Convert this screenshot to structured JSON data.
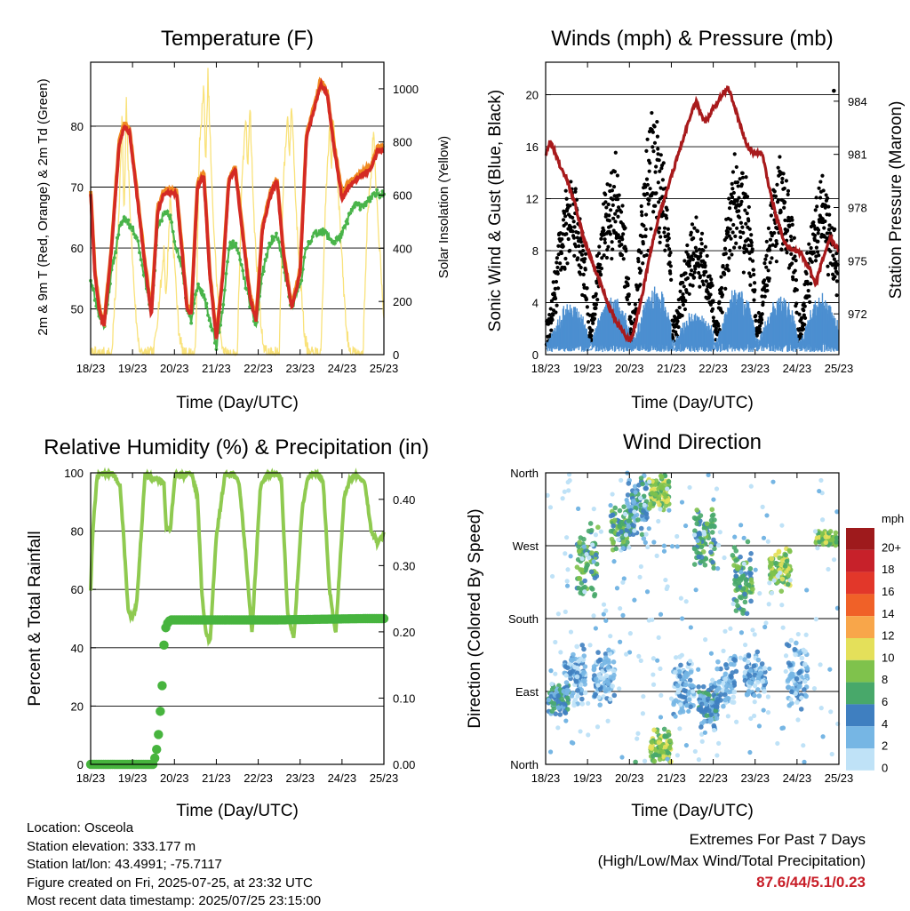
{
  "colors": {
    "temp_2m": "#d42a24",
    "temp_9m": "#f08a22",
    "dewpoint": "#49b44a",
    "solar": "#f9e27a",
    "wind": "#4c8fd0",
    "gust": "#000000",
    "pressure": "#a81a1c",
    "rh": "#8fca50",
    "precip": "#47b43e",
    "extremes_text": "#c81e28"
  },
  "panels": {
    "temperature": {
      "title": "Temperature (F)",
      "xlabel": "Time (Day/UTC)",
      "ylabel_left": "2m & 9m T (Red, Orange) & 2m Td (Green)",
      "ylabel_right": "Solar Insolation (Yellow)"
    },
    "winds": {
      "title": "Winds (mph) & Pressure (mb)",
      "xlabel": "Time (Day/UTC)",
      "ylabel_left": "Sonic Wind & Gust (Blue, Black)",
      "ylabel_right": "Station Pressure (Maroon)"
    },
    "humidity": {
      "title": "Relative Humidity (%) & Precipitation (in)",
      "xlabel": "Time (Day/UTC)",
      "ylabel_left": "Percent & Total Rainfall"
    },
    "direction": {
      "title": "Wind Direction",
      "xlabel": "Time (Day/UTC)",
      "ylabel_left": "Direction (Colored By Speed)",
      "legend_title": "mph"
    }
  },
  "chart_data": [
    {
      "type": "line",
      "id": "temperature",
      "x_ticks": [
        "18/23",
        "19/23",
        "20/23",
        "21/23",
        "22/23",
        "23/23",
        "24/23",
        "25/23"
      ],
      "xlim": [
        0,
        7
      ],
      "ylim": [
        42.5,
        90.5
      ],
      "y_ticks": [
        50,
        60,
        70,
        80
      ],
      "y2lim": [
        0,
        1100
      ],
      "y2_ticks": [
        0,
        200,
        400,
        600,
        800,
        1000
      ],
      "grid": "horizontal",
      "series": [
        {
          "key": "t2m",
          "x": [
            0,
            0.1,
            0.2,
            0.32,
            0.5,
            0.68,
            0.8,
            0.93,
            1.1,
            1.3,
            1.45,
            1.6,
            1.75,
            1.9,
            2.05,
            2.2,
            2.3,
            2.4,
            2.55,
            2.7,
            2.85,
            2.9,
            3.0,
            3.15,
            3.3,
            3.45,
            3.6,
            3.8,
            3.95,
            4.1,
            4.3,
            4.45,
            4.6,
            4.8,
            5.0,
            5.15,
            5.3,
            5.5,
            5.65,
            5.8,
            6.0,
            6.15,
            6.3,
            6.5,
            6.7,
            6.85,
            7.0
          ],
          "y": [
            69,
            56,
            50,
            47,
            60,
            77,
            80,
            79,
            69,
            57,
            49,
            66,
            69,
            69,
            69,
            58,
            50,
            49,
            70,
            72,
            55,
            52,
            45,
            55,
            71,
            73,
            64,
            52,
            48,
            63,
            69,
            71,
            59,
            50,
            56,
            78,
            82,
            87,
            85,
            77,
            68,
            70,
            71,
            72,
            73,
            76,
            76
          ]
        },
        {
          "key": "t9m",
          "x": [
            0,
            0.1,
            0.2,
            0.32,
            0.5,
            0.68,
            0.8,
            0.93,
            1.1,
            1.3,
            1.45,
            1.6,
            1.75,
            1.9,
            2.05,
            2.2,
            2.3,
            2.4,
            2.55,
            2.7,
            2.85,
            2.9,
            3.0,
            3.15,
            3.3,
            3.45,
            3.6,
            3.8,
            3.95,
            4.1,
            4.3,
            4.45,
            4.6,
            4.8,
            5.0,
            5.15,
            5.3,
            5.5,
            5.65,
            5.8,
            6.0,
            6.15,
            6.3,
            6.5,
            6.7,
            6.85,
            7.0
          ],
          "y": [
            69.5,
            56.5,
            50.5,
            47.5,
            60.5,
            77.5,
            80.5,
            79.5,
            69.5,
            57.5,
            49.5,
            66.5,
            69.5,
            69.5,
            69.5,
            58.5,
            50.5,
            49.5,
            70.5,
            72.5,
            55.5,
            52.5,
            45.5,
            55.5,
            71.5,
            73.5,
            64.5,
            52.5,
            48.5,
            63.5,
            69.5,
            71.5,
            59.5,
            50.5,
            56.5,
            78.5,
            82.5,
            87.5,
            85.5,
            77.5,
            69,
            70.5,
            71.5,
            72.5,
            73.5,
            76.5,
            76.5
          ]
        },
        {
          "key": "td",
          "x": [
            0,
            0.1,
            0.2,
            0.32,
            0.5,
            0.68,
            0.8,
            0.93,
            1.1,
            1.3,
            1.45,
            1.6,
            1.75,
            1.9,
            2.05,
            2.2,
            2.3,
            2.4,
            2.55,
            2.7,
            2.85,
            2.9,
            3.0,
            3.15,
            3.3,
            3.45,
            3.6,
            3.8,
            3.95,
            4.1,
            4.3,
            4.45,
            4.6,
            4.8,
            5.0,
            5.15,
            5.3,
            5.5,
            5.65,
            5.8,
            6.0,
            6.15,
            6.3,
            6.5,
            6.7,
            6.85,
            7.0
          ],
          "y": [
            55,
            52,
            49,
            47,
            56,
            63,
            65,
            64,
            62,
            55,
            49,
            63,
            66,
            65,
            60,
            56,
            50,
            48,
            54,
            52,
            48,
            47,
            44,
            50,
            60,
            61,
            57,
            51,
            47,
            56,
            61,
            62,
            57,
            50,
            54,
            60,
            62,
            63,
            62,
            61,
            62,
            65,
            67,
            67,
            68,
            69,
            69
          ]
        },
        {
          "key": "solar",
          "x": [
            0,
            0.5,
            0.6,
            0.7,
            0.75,
            0.8,
            0.85,
            0.9,
            1.0,
            1.1,
            1.2,
            1.5,
            1.6,
            1.7,
            1.75,
            1.8,
            1.9,
            2.0,
            2.1,
            2.2,
            2.5,
            2.6,
            2.7,
            2.75,
            2.8,
            2.9,
            3.0,
            3.1,
            3.2,
            3.5,
            3.6,
            3.7,
            3.75,
            3.8,
            3.9,
            4.0,
            4.1,
            4.2,
            4.5,
            4.6,
            4.7,
            4.75,
            4.8,
            4.9,
            5.0,
            5.1,
            5.2,
            5.5,
            5.6,
            5.7,
            5.75,
            5.8,
            5.9,
            6.0,
            6.1,
            6.2,
            6.5,
            6.6,
            6.7,
            6.75,
            6.8,
            6.9,
            7.0
          ],
          "y": [
            0,
            0,
            250,
            650,
            900,
            500,
            950,
            700,
            350,
            100,
            0,
            0,
            150,
            300,
            400,
            200,
            600,
            350,
            100,
            0,
            0,
            800,
            1000,
            700,
            1050,
            600,
            300,
            80,
            0,
            0,
            600,
            900,
            700,
            950,
            500,
            250,
            60,
            0,
            0,
            650,
            900,
            750,
            950,
            550,
            300,
            80,
            0,
            0,
            550,
            850,
            700,
            900,
            650,
            350,
            100,
            0,
            0,
            500,
            700,
            850,
            650,
            400,
            150
          ]
        }
      ]
    },
    {
      "type": "scatter",
      "id": "winds",
      "x_ticks": [
        "18/23",
        "19/23",
        "20/23",
        "21/23",
        "22/23",
        "23/23",
        "24/23",
        "25/23"
      ],
      "xlim": [
        0,
        7
      ],
      "ylim": [
        0,
        22.5
      ],
      "y_ticks": [
        0,
        4,
        8,
        12,
        16,
        20
      ],
      "y2lim": [
        969.7,
        986.2
      ],
      "y2_ticks": [
        972,
        975,
        978,
        981,
        984
      ],
      "grid": "horizontal",
      "daily_cycle": {
        "amplitude_wind": [
          2.5,
          3.0,
          3.5,
          2.0,
          3.5,
          3.0,
          3.0,
          3.0
        ],
        "amplitude_gust": [
          8,
          9,
          12,
          6,
          9,
          9,
          8,
          11
        ],
        "peak_offset_day": 0.6
      },
      "pressure": {
        "x": [
          0,
          0.1,
          0.2,
          0.35,
          0.5,
          0.7,
          0.9,
          1.1,
          1.3,
          1.5,
          1.7,
          1.9,
          2.0,
          2.1,
          2.3,
          2.5,
          2.7,
          2.9,
          3.1,
          3.3,
          3.5,
          3.6,
          3.75,
          3.85,
          4.0,
          4.2,
          4.35,
          4.5,
          4.6,
          4.8,
          5.0,
          5.15,
          5.35,
          5.5,
          5.7,
          5.9,
          6.1,
          6.3,
          6.45,
          6.6,
          6.8,
          7.0
        ],
        "y": [
          981,
          981.7,
          981.3,
          980.3,
          979.6,
          978.2,
          976.3,
          975.0,
          973.8,
          972.5,
          971.5,
          970.8,
          970.5,
          971.0,
          973.0,
          975.5,
          977.5,
          979.0,
          980.5,
          982.0,
          983.5,
          984.0,
          983.0,
          982.9,
          983.6,
          984.3,
          984.8,
          983.8,
          983.0,
          981.5,
          981.0,
          981.2,
          979.0,
          977.5,
          976.0,
          975.6,
          975.4,
          974.5,
          973.7,
          975.0,
          976.3,
          975.6
        ]
      },
      "max_gust_point": {
        "x": 6.88,
        "y": 20.3
      }
    },
    {
      "type": "line",
      "id": "humidity",
      "x_ticks": [
        "18/23",
        "19/23",
        "20/23",
        "21/23",
        "22/23",
        "23/23",
        "24/23",
        "25/23"
      ],
      "xlim": [
        0,
        7
      ],
      "ylim": [
        0,
        100
      ],
      "y_ticks": [
        0,
        20,
        40,
        60,
        80,
        100
      ],
      "y2lim": [
        0,
        0.44
      ],
      "y2_ticks": [
        "0.00",
        "0.10",
        "0.20",
        "0.30",
        "0.40"
      ],
      "grid": "horizontal",
      "series": [
        {
          "key": "rh",
          "x": [
            0,
            0.05,
            0.15,
            0.25,
            0.5,
            0.7,
            0.8,
            0.9,
            1.0,
            1.1,
            1.3,
            1.45,
            1.6,
            1.75,
            1.8,
            1.9,
            2.0,
            2.05,
            2.2,
            2.4,
            2.55,
            2.65,
            2.75,
            2.85,
            3.0,
            3.2,
            3.4,
            3.55,
            3.7,
            3.85,
            4.05,
            4.2,
            4.4,
            4.55,
            4.7,
            4.85,
            5.05,
            5.2,
            5.4,
            5.55,
            5.7,
            5.85,
            6.05,
            6.2,
            6.4,
            6.55,
            6.7,
            6.85,
            7.0
          ],
          "y": [
            60,
            80,
            98,
            100,
            100,
            96,
            75,
            52,
            50,
            55,
            100,
            98,
            98,
            96,
            82,
            80,
            97,
            100,
            99,
            100,
            92,
            60,
            45,
            42,
            78,
            99,
            100,
            96,
            72,
            45,
            95,
            99,
            100,
            98,
            52,
            43,
            88,
            99,
            100,
            97,
            60,
            45,
            92,
            98,
            99,
            96,
            80,
            76,
            79
          ]
        },
        {
          "key": "precip",
          "x": [
            0,
            1.0,
            1.5,
            1.6,
            1.65,
            1.7,
            1.75,
            1.8,
            1.9,
            2.5,
            3.5,
            4.5,
            5.5,
            6.5,
            7.0
          ],
          "y": [
            0,
            0,
            0,
            0.03,
            0.07,
            0.11,
            0.18,
            0.21,
            0.218,
            0.218,
            0.218,
            0.218,
            0.219,
            0.22,
            0.22
          ]
        }
      ]
    },
    {
      "type": "scatter",
      "id": "direction",
      "x_ticks": [
        "18/23",
        "19/23",
        "20/23",
        "21/23",
        "22/23",
        "23/23",
        "24/23",
        "25/23"
      ],
      "xlim": [
        0,
        7
      ],
      "y_ticks": [
        "North",
        "West",
        "South",
        "East",
        "North"
      ],
      "y_tick_degrees": [
        360,
        270,
        180,
        90,
        0
      ],
      "grid": "horizontal",
      "legend": {
        "title": "mph",
        "labels": [
          "20+",
          "18",
          "16",
          "14",
          "12",
          "10",
          "8",
          "6",
          "4",
          "2",
          "0"
        ],
        "colors": [
          "#9e1a1c",
          "#c7212a",
          "#e2372a",
          "#f06128",
          "#f8a64a",
          "#e4e05a",
          "#7fc24c",
          "#48a86a",
          "#3f7fc0",
          "#76b6e4",
          "#bfe2f7"
        ]
      },
      "clusters": [
        {
          "x": 0.3,
          "dir": 80,
          "spread": 25,
          "speed": 2
        },
        {
          "x": 0.7,
          "dir": 110,
          "spread": 40,
          "speed": 1
        },
        {
          "x": 1.0,
          "dir": 250,
          "spread": 50,
          "speed": 3
        },
        {
          "x": 1.4,
          "dir": 110,
          "spread": 40,
          "speed": 1
        },
        {
          "x": 1.8,
          "dir": 290,
          "spread": 30,
          "speed": 3
        },
        {
          "x": 2.2,
          "dir": 320,
          "spread": 50,
          "speed": 2
        },
        {
          "x": 2.7,
          "dir": 335,
          "spread": 25,
          "speed": 4
        },
        {
          "x": 2.75,
          "dir": 20,
          "spread": 25,
          "speed": 4
        },
        {
          "x": 3.3,
          "dir": 100,
          "spread": 40,
          "speed": 1
        },
        {
          "x": 3.8,
          "dir": 280,
          "spread": 40,
          "speed": 3
        },
        {
          "x": 3.9,
          "dir": 70,
          "spread": 30,
          "speed": 2
        },
        {
          "x": 4.3,
          "dir": 100,
          "spread": 40,
          "speed": 1
        },
        {
          "x": 4.7,
          "dir": 230,
          "spread": 50,
          "speed": 3
        },
        {
          "x": 5.0,
          "dir": 110,
          "spread": 30,
          "speed": 1
        },
        {
          "x": 5.6,
          "dir": 240,
          "spread": 30,
          "speed": 4
        },
        {
          "x": 6.0,
          "dir": 110,
          "spread": 50,
          "speed": 1
        },
        {
          "x": 6.7,
          "dir": 280,
          "spread": 10,
          "speed": 4
        }
      ]
    }
  ],
  "station_info": {
    "location": "Location: Osceola",
    "elevation": "Station elevation: 333.177 m",
    "latlon": "Station lat/lon: 43.4991; -75.7117",
    "created": "Figure created on Fri, 2025-07-25, at 23:32 UTC",
    "recent": "Most recent data timestamp: 2025/07/25 23:15:00"
  },
  "extremes": {
    "title": "Extremes For Past 7 Days",
    "subtitle": "(High/Low/Max Wind/Total Precipitation)",
    "values": "87.6/44/5.1/0.23"
  }
}
